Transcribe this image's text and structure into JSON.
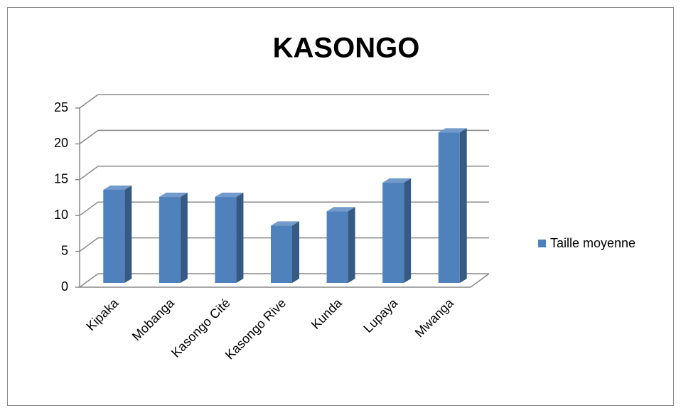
{
  "chart_data": {
    "type": "bar3d",
    "title": "KASONGO",
    "categories": [
      "Kipaka",
      "Mobanga",
      "Kasongo Cité",
      "Kasongo Rive",
      "Kunda",
      "Lupaya",
      "Mwanga"
    ],
    "series": [
      {
        "name": "Taille moyenne",
        "color": "#4f81bd",
        "values": [
          13,
          12,
          12,
          8,
          10,
          14,
          21
        ]
      }
    ],
    "ylim": [
      0,
      25
    ],
    "yticks": [
      0,
      5,
      10,
      15,
      20,
      25
    ],
    "grid": true,
    "legend": "right"
  }
}
